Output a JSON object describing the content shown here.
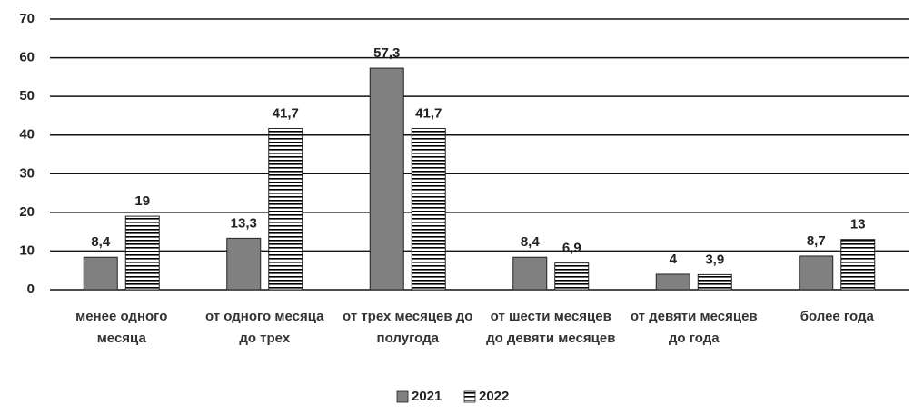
{
  "chart_data": {
    "type": "bar",
    "categories": [
      "менее одного месяца",
      "от одного месяца до трех",
      "от трех месяцев до полугода",
      "от шести месяцев до девяти месяцев",
      "от девяти месяцев до года",
      "более года"
    ],
    "series": [
      {
        "name": "2021",
        "color": "#808080",
        "values": [
          8.4,
          13.3,
          57.3,
          8.4,
          4,
          8.7
        ],
        "value_labels": [
          "8,4",
          "13,3",
          "57,3",
          "8,4",
          "4",
          "8,7"
        ]
      },
      {
        "name": "2022",
        "color": "#000000",
        "hatch": "horizontal",
        "values": [
          19,
          41.7,
          41.7,
          6.9,
          3.9,
          13
        ],
        "value_labels": [
          "19",
          "41,7",
          "41,7",
          "6,9",
          "3,9",
          "13"
        ]
      }
    ],
    "ylim": [
      0,
      70
    ],
    "yticks": [
      0,
      10,
      20,
      30,
      40,
      50,
      60,
      70
    ],
    "grid": true,
    "legend": "bottom"
  }
}
